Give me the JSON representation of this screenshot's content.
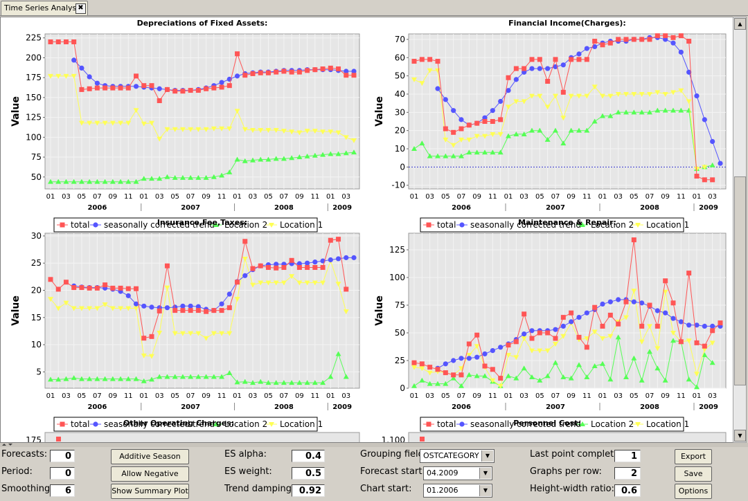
{
  "window": {
    "tab_title": "Time Series Analysis",
    "close_glyph": "✖"
  },
  "legend_labels": {
    "total": "total",
    "trend": "seasonally corrected trend",
    "loc2": "Location 2",
    "loc1": "Location 1"
  },
  "colors": {
    "total": "#ff5555",
    "trend": "#5555ff",
    "loc2": "#55ff55",
    "loc1": "#ffff55",
    "plot_bg": "#e6e6e6"
  },
  "x_month_labels": [
    "01",
    "03",
    "05",
    "07",
    "09",
    "11",
    "01",
    "03",
    "05",
    "07",
    "09",
    "11",
    "01",
    "03",
    "05",
    "07",
    "09",
    "11",
    "01",
    "03"
  ],
  "year_labels": [
    "2006",
    "2007",
    "2008",
    "2009"
  ],
  "charts": [
    {
      "title": "Depreciations of Fixed Assets:",
      "ylabel": "Value",
      "ylim": [
        35,
        230
      ],
      "yticks": [
        50,
        75,
        100,
        125,
        150,
        175,
        200,
        225
      ],
      "zero_line": false,
      "total": [
        220,
        220,
        220,
        220,
        160,
        161,
        162,
        162,
        162,
        162,
        162,
        177,
        165,
        165,
        146,
        160,
        158,
        158,
        159,
        159,
        161,
        162,
        163,
        165,
        205,
        178,
        180,
        181,
        181,
        182,
        183,
        182,
        182,
        184,
        185,
        186,
        187,
        186,
        178,
        178
      ],
      "trend": [
        null,
        null,
        null,
        197,
        187,
        176,
        168,
        165,
        164,
        164,
        164,
        164,
        163,
        162,
        161,
        160,
        159,
        159,
        159,
        160,
        162,
        165,
        169,
        173,
        177,
        180,
        181,
        182,
        182,
        183,
        184,
        184,
        184,
        185,
        185,
        185,
        185,
        184,
        183,
        183
      ],
      "loc2": [
        44,
        44,
        44,
        44,
        44,
        44,
        44,
        44,
        44,
        44,
        44,
        44,
        48,
        48,
        48,
        50,
        49,
        49,
        49,
        49,
        49,
        50,
        52,
        56,
        72,
        70,
        71,
        72,
        72,
        73,
        73,
        74,
        75,
        76,
        77,
        78,
        79,
        79,
        80,
        81
      ],
      "loc1": [
        177,
        177,
        177,
        177,
        118,
        118,
        118,
        118,
        118,
        118,
        118,
        134,
        117,
        118,
        98,
        110,
        110,
        110,
        110,
        110,
        110,
        111,
        111,
        111,
        133,
        110,
        109,
        109,
        109,
        109,
        108,
        107,
        106,
        108,
        108,
        107,
        107,
        106,
        100,
        96
      ]
    },
    {
      "title": "Financial Income(Charges):",
      "ylabel": "Value",
      "ylim": [
        -12,
        73
      ],
      "yticks": [
        -10,
        0,
        10,
        20,
        30,
        40,
        50,
        60,
        70
      ],
      "zero_line": true,
      "total": [
        58,
        59,
        59,
        58,
        21,
        19,
        21,
        23,
        24,
        25,
        25,
        26,
        49,
        54,
        54,
        59,
        59,
        47,
        59,
        41,
        59,
        59,
        59,
        69,
        67,
        68,
        70,
        70,
        70,
        70,
        70,
        72,
        72,
        71,
        72,
        69,
        -5,
        -7,
        -7,
        null
      ],
      "trend": [
        null,
        null,
        null,
        43,
        37,
        31,
        26,
        23,
        24,
        27,
        31,
        36,
        42,
        48,
        52,
        54,
        54,
        54,
        55,
        56,
        60,
        62,
        65,
        66,
        68,
        69,
        69,
        69,
        70,
        70,
        71,
        71,
        70,
        68,
        63,
        52,
        39,
        26,
        14,
        2
      ],
      "loc2": [
        10,
        13,
        6,
        6,
        6,
        6,
        6,
        8,
        8,
        8,
        8,
        8,
        17,
        18,
        18,
        20,
        20,
        15,
        20,
        13,
        20,
        20,
        20,
        25,
        28,
        28,
        30,
        30,
        30,
        30,
        30,
        31,
        31,
        31,
        31,
        31,
        -1,
        0,
        1,
        null
      ],
      "loc1": [
        48,
        46,
        53,
        53,
        15,
        12,
        15,
        15,
        17,
        17,
        18,
        18,
        33,
        36,
        36,
        39,
        39,
        33,
        39,
        27,
        39,
        39,
        39,
        44,
        39,
        39,
        40,
        40,
        40,
        40,
        40,
        41,
        40,
        41,
        42,
        36,
        -1,
        0,
        null,
        null
      ]
    },
    {
      "title": "Insurance,Fee,Taxes:",
      "ylabel": "Value",
      "ylim": [
        2,
        30.5
      ],
      "yticks": [
        5,
        10,
        15,
        20,
        25,
        30
      ],
      "zero_line": false,
      "total": [
        22,
        20.2,
        21.5,
        20.5,
        20.5,
        20.4,
        20.4,
        21,
        20.4,
        20.4,
        20.3,
        20.3,
        11.2,
        11.5,
        16.2,
        24.5,
        16.3,
        16.3,
        16.3,
        16.3,
        16.1,
        16.3,
        16.3,
        16.8,
        21.5,
        29,
        24,
        24.5,
        24.2,
        24.1,
        24.2,
        25.5,
        24.2,
        24.2,
        24.2,
        24.2,
        29.2,
        29.4,
        20.2,
        null
      ],
      "trend": [
        null,
        null,
        null,
        20.8,
        20.6,
        20.5,
        20.5,
        20.4,
        20.2,
        19.8,
        19,
        17.5,
        17.1,
        16.9,
        16.8,
        16.8,
        16.9,
        17.1,
        17.1,
        17,
        16.5,
        16.3,
        17.5,
        19.3,
        21.6,
        22.7,
        23.8,
        24.5,
        24.7,
        24.8,
        24.8,
        24.9,
        24.9,
        25,
        25.2,
        25.4,
        25.6,
        25.8,
        26,
        26
      ],
      "loc2": [
        3.6,
        3.6,
        3.7,
        3.9,
        3.7,
        3.7,
        3.7,
        3.7,
        3.7,
        3.7,
        3.7,
        3.7,
        3.3,
        3.6,
        4.1,
        4.1,
        4.1,
        4.1,
        4.1,
        4.1,
        4.1,
        4.1,
        4.1,
        4.8,
        3.1,
        3.2,
        3,
        3.2,
        3,
        3,
        3,
        3,
        3,
        3,
        3,
        3,
        4.1,
        8.3,
        4.1,
        null
      ],
      "loc1": [
        18.4,
        16.7,
        17.7,
        16.7,
        16.7,
        16.7,
        16.7,
        17.4,
        16.7,
        16.7,
        16.7,
        16.7,
        8,
        7.9,
        12.2,
        20.5,
        12.1,
        12.1,
        12.1,
        12.1,
        11.2,
        12.1,
        12.1,
        12.1,
        18.4,
        25.8,
        21,
        21.4,
        21.4,
        21.4,
        21.4,
        22.6,
        21.4,
        21.4,
        21.4,
        21.4,
        25.4,
        21.2,
        16.1,
        null
      ]
    },
    {
      "title": "Maintenance & Repair:",
      "ylabel": "Value",
      "ylim": [
        0,
        140
      ],
      "yticks": [
        0,
        25,
        50,
        75,
        100,
        125
      ],
      "zero_line": false,
      "total": [
        23,
        22,
        19,
        17,
        14,
        12,
        12,
        40,
        48,
        20,
        17,
        9,
        39,
        42,
        67,
        45,
        50,
        50,
        45,
        64,
        68,
        46,
        37,
        73,
        56,
        66,
        58,
        78,
        134,
        56,
        75,
        56,
        97,
        77,
        42,
        104,
        41,
        38,
        52,
        59
      ],
      "trend": [
        null,
        null,
        null,
        18,
        22,
        25,
        27,
        27,
        28,
        31,
        34,
        37,
        40,
        44,
        49,
        52,
        52,
        52,
        53,
        56,
        60,
        64,
        68,
        71,
        76,
        78,
        80,
        80,
        78,
        77,
        74,
        70,
        68,
        63,
        60,
        57,
        57,
        56,
        56,
        56
      ],
      "loc2": [
        2,
        7,
        4,
        4,
        4,
        9,
        2,
        12,
        11,
        11,
        6,
        2,
        11,
        9,
        18,
        10,
        7,
        11,
        23,
        10,
        9,
        21,
        10,
        20,
        22,
        8,
        46,
        10,
        27,
        7,
        33,
        18,
        7,
        43,
        42,
        8,
        1,
        30,
        23,
        null
      ],
      "loc1": [
        19,
        18,
        14,
        15,
        14,
        12,
        18,
        30,
        38,
        19,
        7,
        2,
        30,
        28,
        45,
        34,
        34,
        34,
        40,
        47,
        59,
        44,
        45,
        51,
        45,
        47,
        60,
        64,
        88,
        42,
        56,
        36,
        87,
        50,
        42,
        43,
        13,
        35,
        41,
        null
      ]
    }
  ],
  "partial_charts": [
    {
      "title": "Other Operating Charges:",
      "first_tick": "175"
    },
    {
      "title": "Personnel Cost:",
      "first_tick": "1.100"
    }
  ],
  "controls": {
    "forecasts": {
      "label": "Forecasts:",
      "value": "0"
    },
    "period": {
      "label": "Period:",
      "value": "0"
    },
    "smoothing": {
      "label": "Smoothing:",
      "value": "6"
    },
    "btn_additive": "Additive Season",
    "btn_negative": "Allow Negative Values",
    "btn_summary": "Show Summary Plot",
    "es_alpha": {
      "label": "ES alpha:",
      "value": "0.4"
    },
    "es_weight": {
      "label": "ES weight:",
      "value": "0.5"
    },
    "trend_damping": {
      "label": "Trend damping:",
      "value": "0.92"
    },
    "grouping_field": {
      "label": "Grouping field:",
      "value": "OSTCATEGORY"
    },
    "forecast_start": {
      "label": "Forecast start:",
      "value": "04.2009"
    },
    "chart_start": {
      "label": "Chart start:",
      "value": "01.2006"
    },
    "last_point": {
      "label": "Last point completion:",
      "value": "1"
    },
    "graphs_per_row": {
      "label": "Graphs per row:",
      "value": "2"
    },
    "hw_ratio": {
      "label": "Height-width ratio:",
      "value": "0.6"
    },
    "btn_export": "Export",
    "btn_save": "Save task",
    "btn_options": "Options"
  }
}
